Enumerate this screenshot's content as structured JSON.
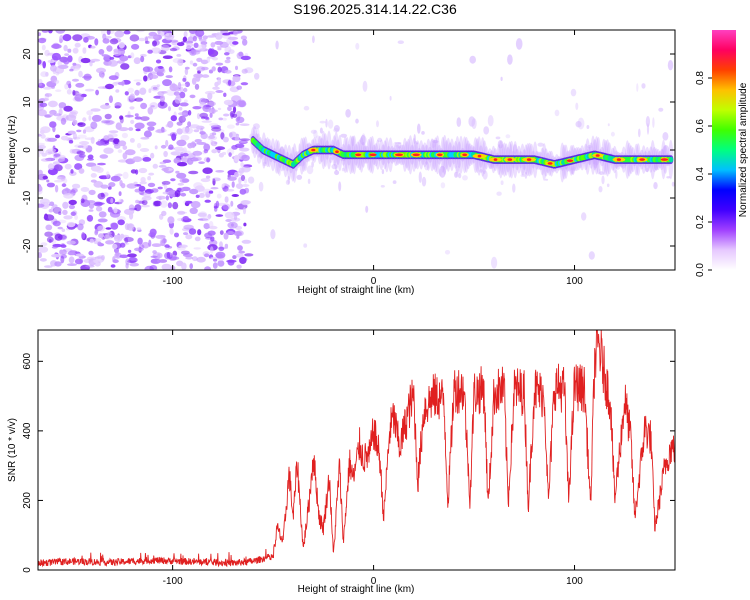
{
  "title": "S196.2025.314.14.22.C36",
  "chart_data": [
    {
      "type": "heatmap",
      "name": "spectrogram",
      "xlabel": "Height of straight line (km)",
      "ylabel": "Frequency (Hz)",
      "xlim": [
        -167,
        150
      ],
      "ylim": [
        -25,
        25
      ],
      "xticks": [
        -100,
        0,
        100
      ],
      "yticks": [
        -20,
        -10,
        0,
        10,
        20
      ],
      "colorbar": {
        "label": "Normalized spectral amplitude",
        "range": [
          0,
          1
        ],
        "ticks": [
          0.0,
          0.2,
          0.4,
          0.6,
          0.8
        ],
        "colors": [
          "#ffffff",
          "#e6c8ff",
          "#a040ff",
          "#4000ff",
          "#0000ff",
          "#00c0ff",
          "#00ff80",
          "#40ff00",
          "#c0ff00",
          "#ffc000",
          "#ff4000",
          "#ff0060",
          "#ff40c0"
        ]
      },
      "noise_region": {
        "x_from": -167,
        "x_to": -62,
        "description": "broadband noise"
      },
      "signal_track": {
        "x": [
          -60,
          -55,
          -50,
          -45,
          -40,
          -35,
          -30,
          -25,
          -20,
          -15,
          -10,
          0,
          10,
          20,
          30,
          40,
          50,
          60,
          70,
          80,
          90,
          100,
          110,
          120,
          130,
          140,
          148
        ],
        "y": [
          2,
          0,
          -1,
          -2,
          -3,
          -1,
          0,
          0,
          0,
          -1,
          -1,
          -1,
          -1,
          -1,
          -1,
          -1,
          -1,
          -2,
          -2,
          -2,
          -3,
          -2,
          -1,
          -2,
          -2,
          -2,
          -2
        ]
      }
    },
    {
      "type": "line",
      "name": "snr",
      "xlabel": "Height of straight line (km)",
      "ylabel": "SNR (10 * v/v)",
      "xlim": [
        -167,
        150
      ],
      "ylim": [
        0,
        690
      ],
      "xticks": [
        -100,
        0,
        100
      ],
      "yticks": [
        0,
        200,
        400,
        600
      ],
      "color": "#e02020",
      "series": [
        {
          "name": "SNR",
          "x": [
            -167,
            -150,
            -130,
            -110,
            -90,
            -70,
            -60,
            -50,
            -48,
            -45,
            -42,
            -40,
            -38,
            -35,
            -32,
            -30,
            -27,
            -25,
            -22,
            -20,
            -17,
            -15,
            -12,
            -10,
            -7,
            -5,
            -2,
            0,
            3,
            5,
            8,
            10,
            13,
            15,
            18,
            20,
            22,
            25,
            27,
            30,
            35,
            37,
            40,
            45,
            48,
            50,
            55,
            57,
            60,
            65,
            67,
            70,
            75,
            77,
            80,
            85,
            87,
            90,
            95,
            97,
            100,
            105,
            108,
            110,
            112,
            115,
            118,
            120,
            125,
            128,
            130,
            135,
            138,
            140,
            145,
            148
          ],
          "y": [
            20,
            25,
            22,
            28,
            24,
            20,
            25,
            40,
            120,
            80,
            280,
            150,
            310,
            60,
            200,
            330,
            150,
            120,
            270,
            40,
            300,
            80,
            310,
            260,
            360,
            320,
            330,
            400,
            330,
            150,
            400,
            440,
            350,
            400,
            470,
            500,
            250,
            460,
            480,
            500,
            490,
            190,
            520,
            520,
            200,
            510,
            520,
            180,
            510,
            520,
            190,
            520,
            510,
            180,
            520,
            500,
            190,
            530,
            520,
            200,
            530,
            520,
            180,
            600,
            650,
            560,
            480,
            200,
            490,
            380,
            150,
            410,
            380,
            120,
            300,
            350
          ]
        }
      ]
    }
  ]
}
